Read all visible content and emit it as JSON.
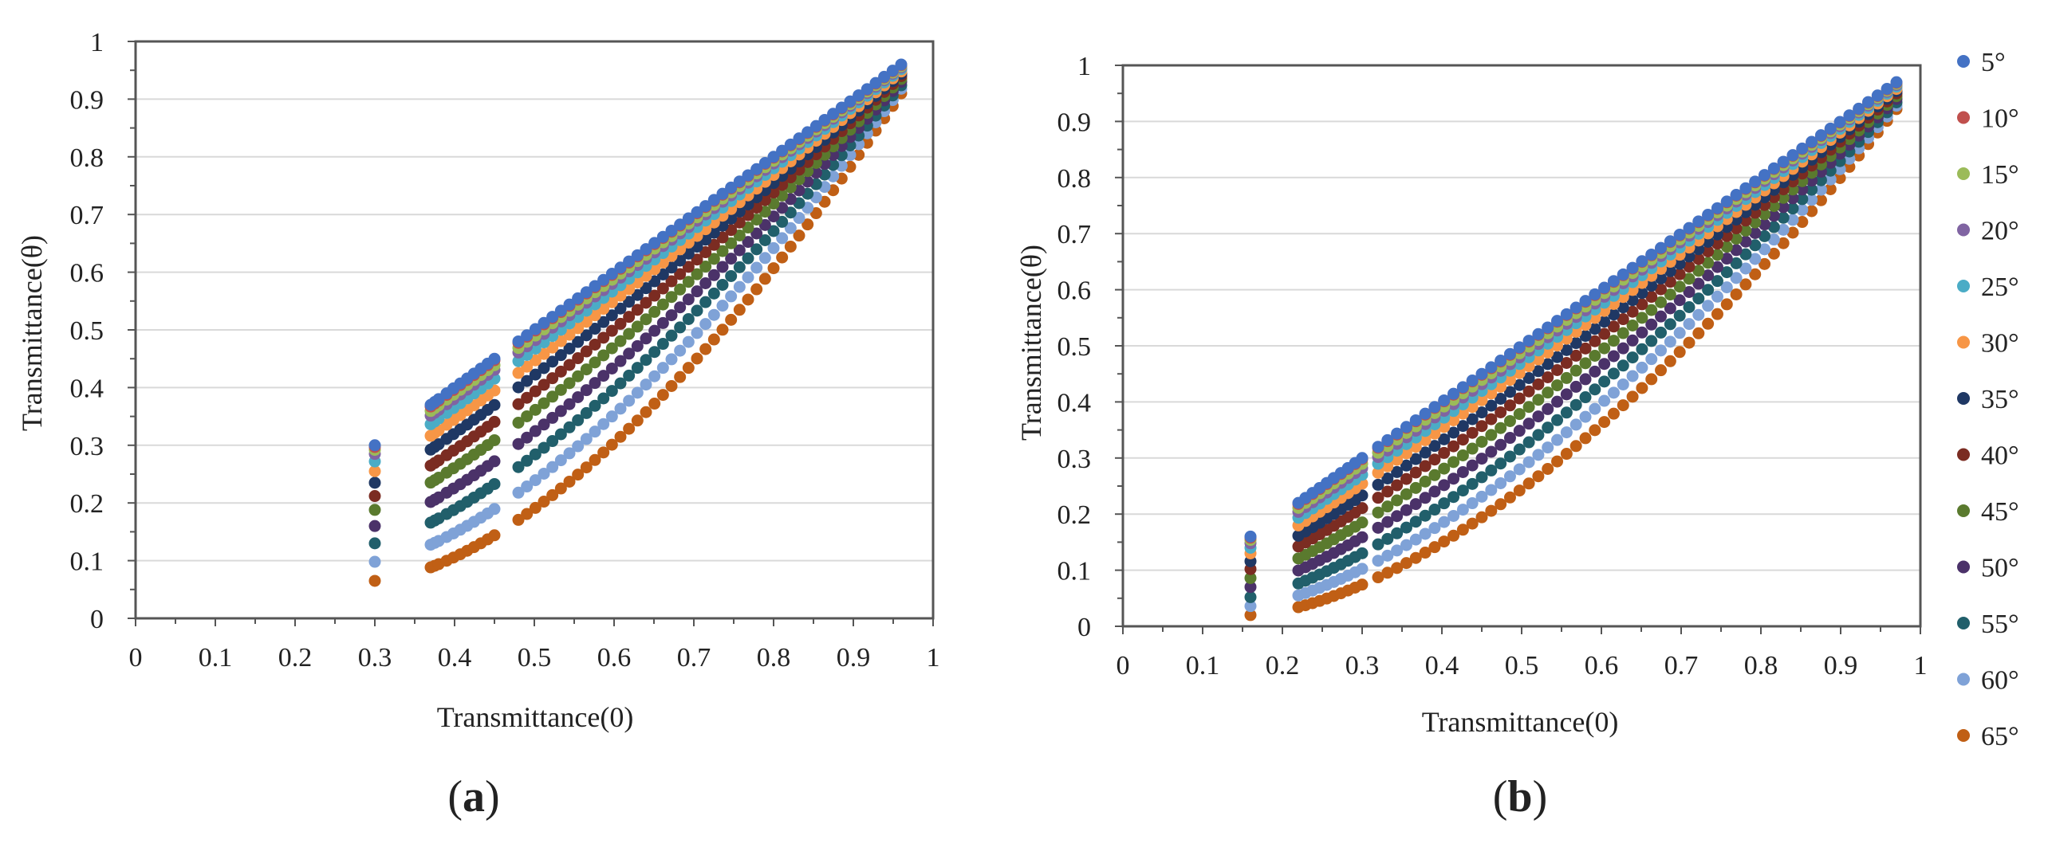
{
  "figure": {
    "panel_a_label_open": "(",
    "panel_a_label_letter": "a",
    "panel_a_label_close": ")",
    "panel_b_label_open": "(",
    "panel_b_label_letter": "b",
    "panel_b_label_close": ")"
  },
  "legend": {
    "entries": [
      "5°",
      "10°",
      "15°",
      "20°",
      "25°",
      "30°",
      "35°",
      "40°",
      "45°",
      "50°",
      "55°",
      "60°",
      "65°"
    ],
    "colors": [
      "#4472C4",
      "#C0504D",
      "#9BBB59",
      "#8064A2",
      "#4BACC6",
      "#F79646",
      "#1F3864",
      "#7B2C22",
      "#5A7A2E",
      "#4B3269",
      "#215F6B",
      "#7FA2D7",
      "#C05F15"
    ]
  },
  "chart_data": [
    {
      "type": "scatter",
      "panel": "a",
      "xlabel": "Transmittance(0)",
      "ylabel": "Transmittance(θ)",
      "xlim": [
        0,
        1
      ],
      "ylim": [
        0,
        1
      ],
      "xticks": [
        "0",
        "0.1",
        "0.2",
        "0.3",
        "0.4",
        "0.5",
        "0.6",
        "0.7",
        "0.8",
        "0.9",
        "1"
      ],
      "yticks": [
        "0",
        "0.1",
        "0.2",
        "0.3",
        "0.4",
        "0.5",
        "0.6",
        "0.7",
        "0.8",
        "0.9",
        "1"
      ],
      "grid": true,
      "x_groups": [
        {
          "range": [
            0.3,
            0.3
          ],
          "n": 1
        },
        {
          "range": [
            0.37,
            0.38
          ],
          "n": 3
        },
        {
          "range": [
            0.39,
            0.45
          ],
          "n": 8
        },
        {
          "range": [
            0.48,
            0.96
          ],
          "n": 46
        }
      ],
      "series": [
        {
          "name": "5°",
          "min_x": 0.3,
          "y_at_min": 0.3,
          "max_x": 0.96,
          "y_at_max": 0.96,
          "curve": 1.0
        },
        {
          "name": "10°",
          "min_x": 0.3,
          "y_at_min": 0.297,
          "max_x": 0.96,
          "y_at_max": 0.959,
          "curve": 1.0
        },
        {
          "name": "15°",
          "min_x": 0.3,
          "y_at_min": 0.292,
          "max_x": 0.96,
          "y_at_max": 0.957,
          "curve": 1.02
        },
        {
          "name": "20°",
          "min_x": 0.3,
          "y_at_min": 0.285,
          "max_x": 0.96,
          "y_at_max": 0.955,
          "curve": 1.03
        },
        {
          "name": "25°",
          "min_x": 0.3,
          "y_at_min": 0.272,
          "max_x": 0.96,
          "y_at_max": 0.952,
          "curve": 1.05
        },
        {
          "name": "30°",
          "min_x": 0.3,
          "y_at_min": 0.255,
          "max_x": 0.96,
          "y_at_max": 0.948,
          "curve": 1.08
        },
        {
          "name": "35°",
          "min_x": 0.3,
          "y_at_min": 0.235,
          "max_x": 0.96,
          "y_at_max": 0.944,
          "curve": 1.12
        },
        {
          "name": "40°",
          "min_x": 0.3,
          "y_at_min": 0.212,
          "max_x": 0.96,
          "y_at_max": 0.94,
          "curve": 1.17
        },
        {
          "name": "45°",
          "min_x": 0.3,
          "y_at_min": 0.188,
          "max_x": 0.96,
          "y_at_max": 0.935,
          "curve": 1.23
        },
        {
          "name": "50°",
          "min_x": 0.3,
          "y_at_min": 0.16,
          "max_x": 0.96,
          "y_at_max": 0.93,
          "curve": 1.3
        },
        {
          "name": "55°",
          "min_x": 0.3,
          "y_at_min": 0.13,
          "max_x": 0.96,
          "y_at_max": 0.924,
          "curve": 1.38
        },
        {
          "name": "60°",
          "min_x": 0.3,
          "y_at_min": 0.098,
          "max_x": 0.96,
          "y_at_max": 0.918,
          "curve": 1.48
        },
        {
          "name": "65°",
          "min_x": 0.3,
          "y_at_min": 0.065,
          "max_x": 0.96,
          "y_at_max": 0.91,
          "curve": 1.6
        }
      ]
    },
    {
      "type": "scatter",
      "panel": "b",
      "xlabel": "Transmittance(0)",
      "ylabel": "Transmittance(θ)",
      "xlim": [
        0,
        1
      ],
      "ylim": [
        0,
        1
      ],
      "xticks": [
        "0",
        "0.1",
        "0.2",
        "0.3",
        "0.4",
        "0.5",
        "0.6",
        "0.7",
        "0.8",
        "0.9",
        "1"
      ],
      "yticks": [
        "0",
        "0.1",
        "0.2",
        "0.3",
        "0.4",
        "0.5",
        "0.6",
        "0.7",
        "0.8",
        "0.9",
        "1"
      ],
      "grid": true,
      "x_groups": [
        {
          "range": [
            0.16,
            0.16
          ],
          "n": 1
        },
        {
          "range": [
            0.22,
            0.3
          ],
          "n": 10
        },
        {
          "range": [
            0.32,
            0.97
          ],
          "n": 56
        }
      ],
      "series": [
        {
          "name": "5°",
          "min_x": 0.16,
          "y_at_min": 0.16,
          "max_x": 0.97,
          "y_at_max": 0.97,
          "curve": 1.0
        },
        {
          "name": "10°",
          "min_x": 0.16,
          "y_at_min": 0.158,
          "max_x": 0.97,
          "y_at_max": 0.969,
          "curve": 1.0
        },
        {
          "name": "15°",
          "min_x": 0.16,
          "y_at_min": 0.154,
          "max_x": 0.97,
          "y_at_max": 0.967,
          "curve": 1.02
        },
        {
          "name": "20°",
          "min_x": 0.16,
          "y_at_min": 0.148,
          "max_x": 0.97,
          "y_at_max": 0.965,
          "curve": 1.03
        },
        {
          "name": "25°",
          "min_x": 0.16,
          "y_at_min": 0.14,
          "max_x": 0.97,
          "y_at_max": 0.962,
          "curve": 1.05
        },
        {
          "name": "30°",
          "min_x": 0.16,
          "y_at_min": 0.13,
          "max_x": 0.97,
          "y_at_max": 0.958,
          "curve": 1.08
        },
        {
          "name": "35°",
          "min_x": 0.16,
          "y_at_min": 0.116,
          "max_x": 0.97,
          "y_at_max": 0.954,
          "curve": 1.12
        },
        {
          "name": "40°",
          "min_x": 0.16,
          "y_at_min": 0.102,
          "max_x": 0.97,
          "y_at_max": 0.95,
          "curve": 1.17
        },
        {
          "name": "45°",
          "min_x": 0.16,
          "y_at_min": 0.086,
          "max_x": 0.97,
          "y_at_max": 0.945,
          "curve": 1.23
        },
        {
          "name": "50°",
          "min_x": 0.16,
          "y_at_min": 0.07,
          "max_x": 0.97,
          "y_at_max": 0.94,
          "curve": 1.3
        },
        {
          "name": "55°",
          "min_x": 0.16,
          "y_at_min": 0.052,
          "max_x": 0.97,
          "y_at_max": 0.934,
          "curve": 1.38
        },
        {
          "name": "60°",
          "min_x": 0.16,
          "y_at_min": 0.036,
          "max_x": 0.97,
          "y_at_max": 0.928,
          "curve": 1.48
        },
        {
          "name": "65°",
          "min_x": 0.16,
          "y_at_min": 0.02,
          "max_x": 0.97,
          "y_at_max": 0.922,
          "curve": 1.6
        }
      ]
    }
  ]
}
